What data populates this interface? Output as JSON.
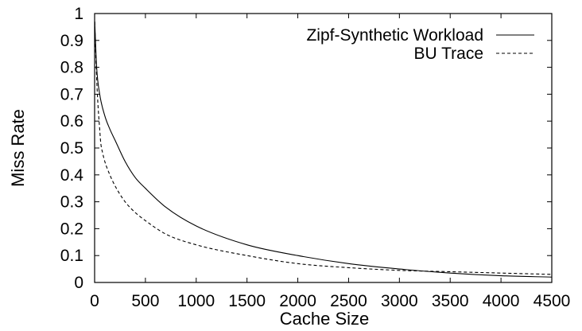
{
  "chart_data": {
    "type": "line",
    "title": "",
    "xlabel": "Cache Size",
    "ylabel": "Miss Rate",
    "xlim": [
      0,
      4500
    ],
    "ylim": [
      0,
      1
    ],
    "xticks": [
      0,
      500,
      1000,
      1500,
      2000,
      2500,
      3000,
      3500,
      4000,
      4500
    ],
    "yticks": [
      0,
      0.1,
      0.2,
      0.3,
      0.4,
      0.5,
      0.6,
      0.7,
      0.8,
      0.9,
      1
    ],
    "xtick_labels": [
      "0",
      "500",
      "1000",
      "1500",
      "2000",
      "2500",
      "3000",
      "3500",
      "4000",
      "4500"
    ],
    "ytick_labels": [
      "0",
      "0.1",
      "0.2",
      "0.3",
      "0.4",
      "0.5",
      "0.6",
      "0.7",
      "0.8",
      "0.9",
      "1"
    ],
    "grid": false,
    "legend_position": "top-right",
    "series": [
      {
        "name": "Zipf-Synthetic Workload",
        "line_style": "solid",
        "color": "#000000",
        "x": [
          1,
          20,
          50,
          100,
          150,
          200,
          300,
          400,
          500,
          700,
          1000,
          1500,
          2000,
          2500,
          3000,
          3500,
          4000,
          4500
        ],
        "y": [
          0.97,
          0.8,
          0.7,
          0.62,
          0.57,
          0.53,
          0.45,
          0.39,
          0.35,
          0.28,
          0.21,
          0.14,
          0.1,
          0.07,
          0.05,
          0.035,
          0.025,
          0.02
        ]
      },
      {
        "name": "BU Trace",
        "line_style": "dashed",
        "color": "#000000",
        "x": [
          1,
          10,
          20,
          30,
          40,
          50,
          60,
          80,
          100,
          150,
          200,
          300,
          400,
          500,
          700,
          1000,
          1500,
          2000,
          2500,
          3000,
          3500,
          4000,
          4500
        ],
        "y": [
          0.97,
          0.86,
          0.76,
          0.68,
          0.62,
          0.57,
          0.52,
          0.48,
          0.45,
          0.4,
          0.36,
          0.3,
          0.26,
          0.23,
          0.18,
          0.14,
          0.1,
          0.07,
          0.055,
          0.045,
          0.04,
          0.035,
          0.03
        ]
      }
    ]
  }
}
